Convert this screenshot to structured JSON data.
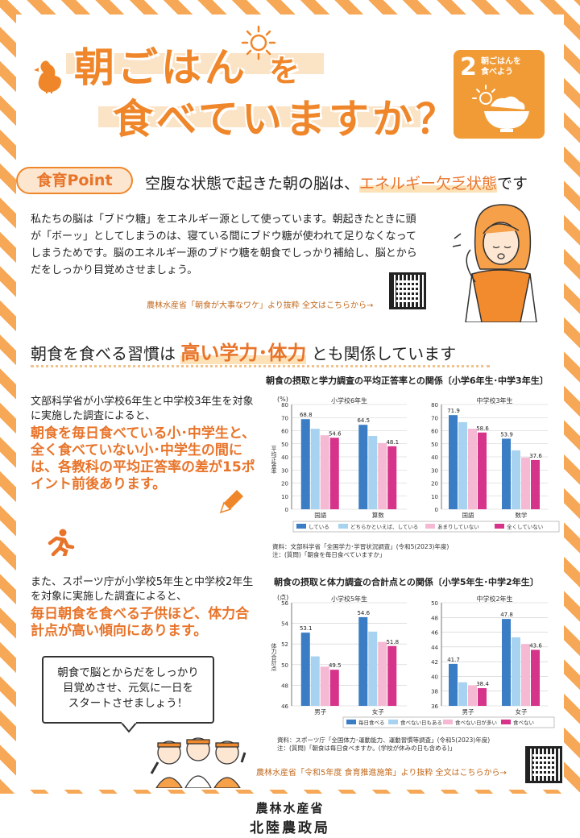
{
  "title": {
    "line1": "朝ごはん",
    "line1_tail": "を",
    "line2": "食べていますか？"
  },
  "sdg": {
    "number": "2",
    "label_line1": "朝ごはんを",
    "label_line2": "食べよう"
  },
  "point": {
    "badge": "食育Point",
    "heading_pre": "空腹な状態で起きた朝の脳は、",
    "heading_hl": "エネルギー欠乏状態",
    "heading_post": "です",
    "body": "私たちの脳は「ブドウ糖」をエネルギー源として使っています。朝起きたときに頭が「ボーッ」としてしまうのは、寝ている間にブドウ糖が使われて足りなくなってしまうためです。脳のエネルギー源のブドウ糖を朝食でしっかり補給し、脳とからだをしっかり目覚めさせましょう。",
    "source": "農林水産省「朝食が大事なワケ」より抜粋 全文はこちらから→"
  },
  "habit": {
    "pre": "朝食を食べる習慣は",
    "hl": "高い学力･体力",
    "post": "とも関係しています"
  },
  "study": {
    "text": "文部科学省が小学校6年生と中学校3年生を対象に実施した調査によると、",
    "orange": "朝食を毎日食べている小･中学生と、全く食べていない小･中学生の間には、各教科の平均正答率の差が15ポイント前後あります。"
  },
  "sports": {
    "text": "また、スポーツ庁が小学校5年生と中学校2年生を対象に実施した調査によると、",
    "orange": "毎日朝食を食べる子供ほど、体力合計点が高い傾向にあります。"
  },
  "bubble": {
    "line1": "朝食で脳とからだをしっかり",
    "line2": "目覚めさせ、元気に一日を",
    "line3": "スタートさせましょう！"
  },
  "source2": "農林水産省「令和5年度 食育推進施策」より抜粋 全文はこちらから→",
  "footer": {
    "line1": "農林水産省",
    "line2": "北陸農政局"
  },
  "colors": {
    "accent": "#f0862a",
    "s1": "#3b7dc4",
    "s2": "#a8d3f0",
    "s3": "#f5b9d3",
    "s4": "#d6338a"
  },
  "chart_data": [
    {
      "type": "bar",
      "title": "朝食の摂取と学力調査の平均正答率との関係〔小学6年生･中学3年生〕",
      "unit": "(%)",
      "ylabel": "平均正答率",
      "ylim": [
        0,
        80
      ],
      "yticks": [
        "0",
        "10",
        "20",
        "30",
        "40",
        "50",
        "60",
        "70",
        "80"
      ],
      "legend": [
        "している",
        "どちらかといえば、している",
        "あまりしていない",
        "全くしていない"
      ],
      "notes": [
        "資料：文部科学省「全国学力･学習状況調査」(令和5(2023)年度)",
        "注：(質問)「朝食を毎日食べていますか」"
      ],
      "panels": [
        {
          "name": "小学校6年生",
          "categories": [
            "国語",
            "算数"
          ],
          "series": [
            [
              68.8,
              64.5
            ],
            [
              61.5,
              56.0
            ],
            [
              56.5,
              50.5
            ],
            [
              54.6,
              48.1
            ]
          ],
          "labels": [
            [
              "68.8",
              "64.5"
            ],
            [
              "",
              ""
            ],
            [
              "",
              ""
            ],
            [
              "54.6",
              "48.1"
            ]
          ]
        },
        {
          "name": "中学校3年生",
          "categories": [
            "国語",
            "数学"
          ],
          "series": [
            [
              71.9,
              53.9
            ],
            [
              66.5,
              45.0
            ],
            [
              61.5,
              39.5
            ],
            [
              58.6,
              37.6
            ]
          ],
          "labels": [
            [
              "71.9",
              "53.9"
            ],
            [
              "",
              ""
            ],
            [
              "",
              ""
            ],
            [
              "58.6",
              "37.6"
            ]
          ]
        }
      ]
    },
    {
      "type": "bar",
      "title": "朝食の摂取と体力調査の合計点との関係〔小学5年生･中学2年生〕",
      "unit": "(点)",
      "ylabel": "体力合計点",
      "ylim": [
        46,
        56
      ],
      "yticks": [
        "46",
        "48",
        "50",
        "52",
        "54",
        "56"
      ],
      "legend": [
        "毎日食べる",
        "食べない日もある",
        "食べない日が多い",
        "食べない"
      ],
      "notes": [
        "資料：スポーツ庁「全国体力･運動能力、運動習慣等調査」(令和5(2023)年度)",
        "注：(質問)「朝食は毎日食べますか。(学校が休みの日も含める)」"
      ],
      "panels": [
        {
          "name": "小学校5年生",
          "categories": [
            "男子",
            "女子"
          ],
          "series": [
            [
              53.1,
              54.6
            ],
            [
              50.8,
              53.2
            ],
            [
              49.8,
              52.2
            ],
            [
              49.5,
              51.8
            ]
          ],
          "labels": [
            [
              "53.1",
              "54.6"
            ],
            [
              "",
              ""
            ],
            [
              "",
              ""
            ],
            [
              "49.5",
              "51.8"
            ]
          ]
        },
        {
          "name": "中学校2年生",
          "categories": [
            "男子",
            "女子"
          ],
          "series": [
            [
              41.7,
              47.8
            ],
            [
              39.2,
              45.3
            ],
            [
              38.8,
              44.4
            ],
            [
              38.4,
              43.6
            ]
          ],
          "labels": [
            [
              "41.7",
              "47.8"
            ],
            [
              "",
              ""
            ],
            [
              "",
              ""
            ],
            [
              "38.4",
              "43.6"
            ]
          ],
          "ylim": [
            36,
            50
          ],
          "yticks": [
            "36",
            "38",
            "40",
            "42",
            "44",
            "46",
            "48",
            "50"
          ]
        }
      ]
    }
  ]
}
